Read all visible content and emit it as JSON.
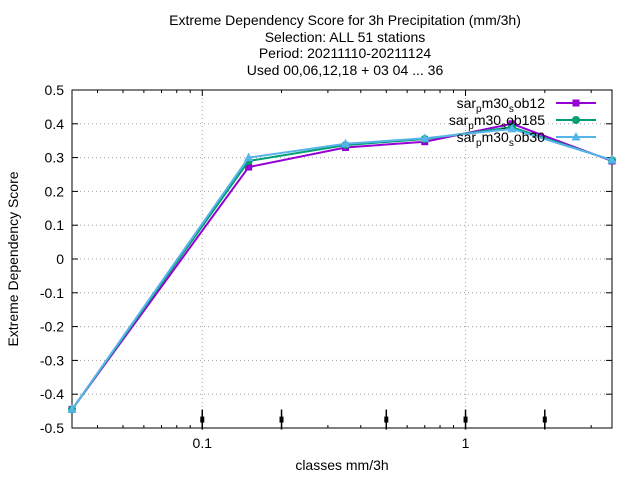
{
  "chart_data": {
    "type": "line",
    "title_lines": [
      "Extreme Dependency Score  for 3h Precipitation (mm/3h)",
      "Selection: ALL     51 stations",
      "Period: 20211110-20211124",
      "Used 00,06,12,18 + 03 04 ... 36"
    ],
    "xlabel": "classes mm/3h",
    "ylabel": "Extreme Dependency Score",
    "xscale": "log",
    "xlim": [
      0.032,
      3.6
    ],
    "ylim": [
      -0.5,
      0.5
    ],
    "x_ticks": [
      {
        "value": 0.1,
        "label": "0.1"
      },
      {
        "value": 1,
        "label": "1"
      }
    ],
    "y_ticks": [
      {
        "value": -0.5,
        "label": "-0.5"
      },
      {
        "value": -0.4,
        "label": "-0.4"
      },
      {
        "value": -0.3,
        "label": "-0.3"
      },
      {
        "value": -0.2,
        "label": "-0.2"
      },
      {
        "value": -0.1,
        "label": "-0.1"
      },
      {
        "value": 0,
        "label": "0"
      },
      {
        "value": 0.1,
        "label": "0.1"
      },
      {
        "value": 0.2,
        "label": "0.2"
      },
      {
        "value": 0.3,
        "label": "0.3"
      },
      {
        "value": 0.4,
        "label": "0.4"
      },
      {
        "value": 0.5,
        "label": "0.5"
      }
    ],
    "grid": true,
    "legend_position": "top-right",
    "threshold_markers": [
      0.1,
      0.2,
      0.5,
      1,
      2
    ],
    "x": [
      0.032,
      0.15,
      0.35,
      0.7,
      1.5,
      3.6
    ],
    "series": [
      {
        "name_parts": [
          [
            "sar",
            "normal"
          ],
          [
            "p",
            "sub"
          ],
          [
            "m30",
            "normal"
          ],
          [
            "s",
            "sub"
          ],
          [
            "ob12",
            "normal"
          ]
        ],
        "color": "#9400d3",
        "marker": "square",
        "values": [
          -0.445,
          0.272,
          0.33,
          0.347,
          0.4,
          0.29
        ]
      },
      {
        "name_parts": [
          [
            "sar",
            "normal"
          ],
          [
            "p",
            "sub"
          ],
          [
            "m30",
            "normal"
          ],
          [
            "s",
            "sub"
          ],
          [
            "ob185",
            "normal"
          ]
        ],
        "color": "#009e73",
        "marker": "circle",
        "values": [
          -0.445,
          0.29,
          0.337,
          0.355,
          0.39,
          0.292
        ]
      },
      {
        "name_parts": [
          [
            "sar",
            "normal"
          ],
          [
            "p",
            "sub"
          ],
          [
            "m30",
            "normal"
          ],
          [
            "s",
            "sub"
          ],
          [
            "ob30",
            "normal"
          ]
        ],
        "color": "#56b4e9",
        "marker": "triangle",
        "values": [
          -0.445,
          0.3,
          0.341,
          0.357,
          0.385,
          0.293
        ]
      }
    ]
  }
}
